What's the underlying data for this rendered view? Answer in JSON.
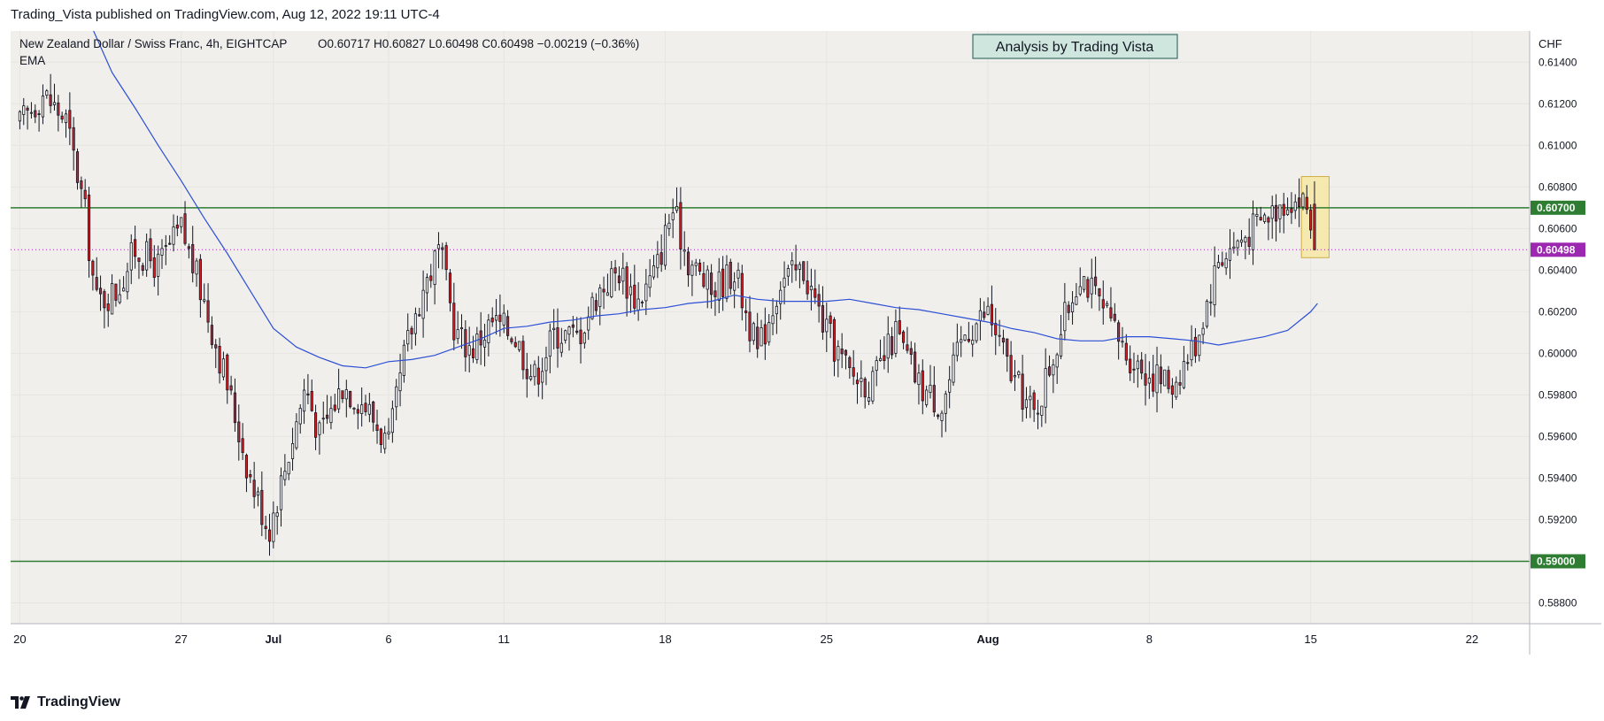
{
  "header": {
    "published_text": "Trading_Vista published on TradingView.com, Aug 12, 2022 19:11 UTC-4"
  },
  "legend": {
    "symbol": "New Zealand Dollar / Swiss Franc, 4h, EIGHTCAP",
    "ohlc": "O0.60717  H0.60827  L0.60498  C0.60498  −0.00219 (−0.36%)",
    "indicator": "EMA"
  },
  "watermark": {
    "text": "Analysis by Trading Vista"
  },
  "footer": {
    "brand": "TradingView"
  },
  "colors": {
    "background": "#f0efeb",
    "bull_body": "#ffffff",
    "bear_body": "#d0202a",
    "wick": "#131722",
    "ema": "#2c4fd6",
    "support_resistance": "#2e7d32",
    "last_price": "#9c27b0",
    "highlight": "#f7e9a6"
  },
  "chart_data": {
    "type": "candlestick",
    "title": "New Zealand Dollar / Swiss Franc, 4h, EIGHTCAP",
    "currency_label": "CHF",
    "timeframe": "4h",
    "ylim": [
      0.587,
      0.6155
    ],
    "y_ticks": [
      "0.61400",
      "0.61200",
      "0.61000",
      "0.60800",
      "0.60600",
      "0.60400",
      "0.60200",
      "0.60000",
      "0.59800",
      "0.59600",
      "0.59400",
      "0.59200",
      "0.58800"
    ],
    "x_ticks": [
      {
        "label": "20",
        "day": 0
      },
      {
        "label": "27",
        "day": 7
      },
      {
        "label": "Jul",
        "day": 11
      },
      {
        "label": "6",
        "day": 16
      },
      {
        "label": "11",
        "day": 21
      },
      {
        "label": "18",
        "day": 28
      },
      {
        "label": "25",
        "day": 35
      },
      {
        "label": "Aug",
        "day": 42
      },
      {
        "label": "8",
        "day": 49
      },
      {
        "label": "15",
        "day": 56
      },
      {
        "label": "22",
        "day": 63
      }
    ],
    "x_range_days": [
      -0.4,
      65.5
    ],
    "horizontal_levels": [
      {
        "label": "0.60700",
        "value": 0.607,
        "color": "#2e7d32"
      },
      {
        "label": "0.59000",
        "value": 0.59,
        "color": "#2e7d32"
      }
    ],
    "last_price": {
      "label": "0.60498",
      "value": 0.60498
    },
    "highlight_box": {
      "day_from": 55.6,
      "day_to": 56.8,
      "low": 0.6046,
      "high": 0.6085
    },
    "ema_series": {
      "name": "EMA",
      "days": [
        3.2,
        4,
        5,
        6,
        7,
        8,
        9,
        10,
        11,
        12,
        13,
        14,
        15,
        16,
        17,
        18,
        19,
        20,
        21,
        22,
        23,
        24,
        25,
        26,
        27,
        28,
        29,
        30,
        31,
        32,
        33,
        34,
        35,
        36,
        37,
        38,
        39,
        40,
        41,
        42,
        43,
        44,
        45,
        46,
        47,
        48,
        49,
        50,
        51,
        52,
        53,
        54,
        55,
        56,
        56.3
      ],
      "values": [
        0.616,
        0.6135,
        0.6118,
        0.61,
        0.6083,
        0.6065,
        0.6048,
        0.603,
        0.6012,
        0.6003,
        0.5998,
        0.5994,
        0.5993,
        0.5996,
        0.5997,
        0.5999,
        0.6003,
        0.6007,
        0.6012,
        0.6013,
        0.6015,
        0.6016,
        0.6018,
        0.6019,
        0.6021,
        0.6022,
        0.6024,
        0.6025,
        0.6028,
        0.6026,
        0.6025,
        0.6025,
        0.6025,
        0.6026,
        0.6024,
        0.6022,
        0.6021,
        0.6019,
        0.6017,
        0.6015,
        0.6012,
        0.601,
        0.6007,
        0.6006,
        0.6006,
        0.6008,
        0.6008,
        0.6007,
        0.6006,
        0.6004,
        0.6006,
        0.6008,
        0.6011,
        0.602,
        0.6024
      ]
    },
    "candles": []
  }
}
